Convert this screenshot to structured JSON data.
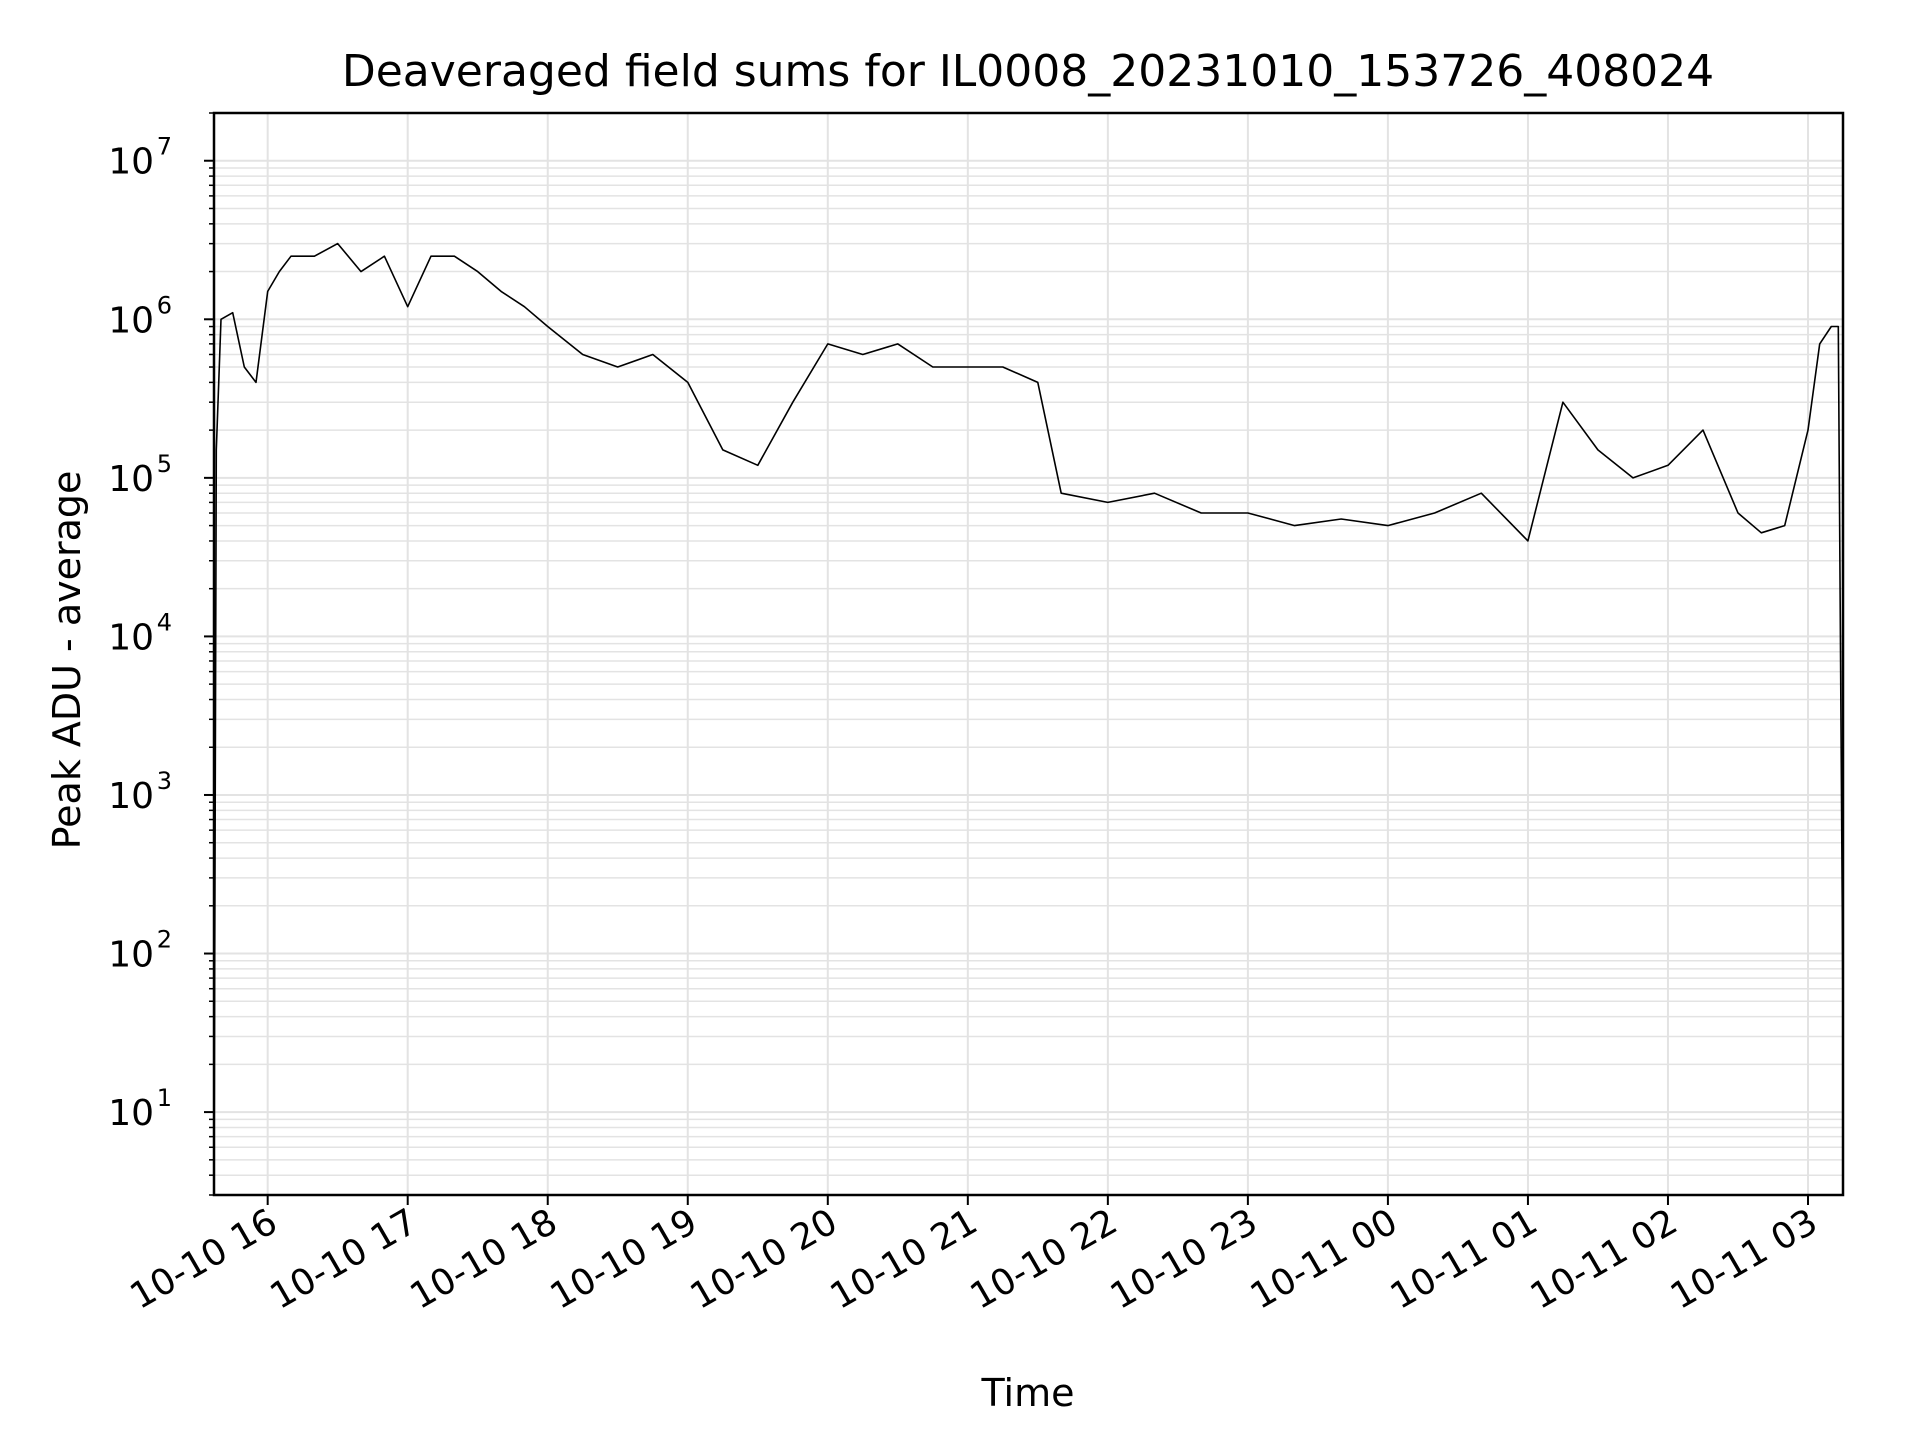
{
  "chart_data": {
    "type": "line",
    "title": "Deaveraged field sums for IL0008_20231010_153726_408024",
    "xlabel": "Time",
    "ylabel": "Peak ADU - average",
    "yscale": "log",
    "xlim": [
      "2023-10-10 15:37",
      "2023-10-11 03:15"
    ],
    "ylim": [
      3,
      20000000
    ],
    "grid": true,
    "line_color": "#000000",
    "grid_color": "#e3e3e3",
    "x_ticks": [
      {
        "label": "10-10 16"
      },
      {
        "label": "10-10 17"
      },
      {
        "label": "10-10 18"
      },
      {
        "label": "10-10 19"
      },
      {
        "label": "10-10 20"
      },
      {
        "label": "10-10 21"
      },
      {
        "label": "10-10 22"
      },
      {
        "label": "10-10 23"
      },
      {
        "label": "10-11 00"
      },
      {
        "label": "10-11 01"
      },
      {
        "label": "10-11 02"
      },
      {
        "label": "10-11 03"
      }
    ],
    "y_ticks": [
      {
        "value": 10,
        "base": "10",
        "exp": "1"
      },
      {
        "value": 100,
        "base": "10",
        "exp": "2"
      },
      {
        "value": 1000,
        "base": "10",
        "exp": "3"
      },
      {
        "value": 10000,
        "base": "10",
        "exp": "4"
      },
      {
        "value": 100000,
        "base": "10",
        "exp": "5"
      },
      {
        "value": 1000000,
        "base": "10",
        "exp": "6"
      },
      {
        "value": 10000000,
        "base": "10",
        "exp": "7"
      }
    ],
    "series": [
      {
        "x": [
          "2023-10-10 15:37",
          "2023-10-10 15:38",
          "2023-10-10 15:40",
          "2023-10-10 15:45",
          "2023-10-10 15:50",
          "2023-10-10 15:55",
          "2023-10-10 16:00",
          "2023-10-10 16:05",
          "2023-10-10 16:10",
          "2023-10-10 16:20",
          "2023-10-10 16:30",
          "2023-10-10 16:40",
          "2023-10-10 16:50",
          "2023-10-10 17:00",
          "2023-10-10 17:10",
          "2023-10-10 17:20",
          "2023-10-10 17:30",
          "2023-10-10 17:40",
          "2023-10-10 17:50",
          "2023-10-10 18:00",
          "2023-10-10 18:15",
          "2023-10-10 18:30",
          "2023-10-10 18:45",
          "2023-10-10 19:00",
          "2023-10-10 19:15",
          "2023-10-10 19:30",
          "2023-10-10 19:45",
          "2023-10-10 20:00",
          "2023-10-10 20:15",
          "2023-10-10 20:30",
          "2023-10-10 20:45",
          "2023-10-10 21:00",
          "2023-10-10 21:15",
          "2023-10-10 21:30",
          "2023-10-10 21:40",
          "2023-10-10 22:00",
          "2023-10-10 22:20",
          "2023-10-10 22:40",
          "2023-10-10 23:00",
          "2023-10-10 23:20",
          "2023-10-10 23:40",
          "2023-10-11 00:00",
          "2023-10-11 00:20",
          "2023-10-11 00:40",
          "2023-10-11 01:00",
          "2023-10-11 01:15",
          "2023-10-11 01:30",
          "2023-10-11 01:45",
          "2023-10-11 02:00",
          "2023-10-11 02:15",
          "2023-10-11 02:30",
          "2023-10-11 02:40",
          "2023-10-11 02:50",
          "2023-10-11 03:00",
          "2023-10-11 03:05",
          "2023-10-11 03:10",
          "2023-10-11 03:13",
          "2023-10-11 03:15"
        ],
        "y": [
          3,
          150000,
          1000000,
          1100000,
          500000,
          400000,
          1500000,
          2000000,
          2500000,
          2500000,
          3000000,
          2000000,
          2500000,
          1200000,
          2500000,
          2500000,
          2000000,
          1500000,
          1200000,
          900000,
          600000,
          500000,
          600000,
          400000,
          150000,
          120000,
          300000,
          700000,
          600000,
          700000,
          500000,
          500000,
          500000,
          400000,
          80000,
          70000,
          80000,
          60000,
          60000,
          50000,
          55000,
          50000,
          60000,
          80000,
          40000,
          300000,
          150000,
          100000,
          120000,
          200000,
          60000,
          45000,
          50000,
          200000,
          700000,
          900000,
          900000,
          40
        ]
      }
    ]
  }
}
